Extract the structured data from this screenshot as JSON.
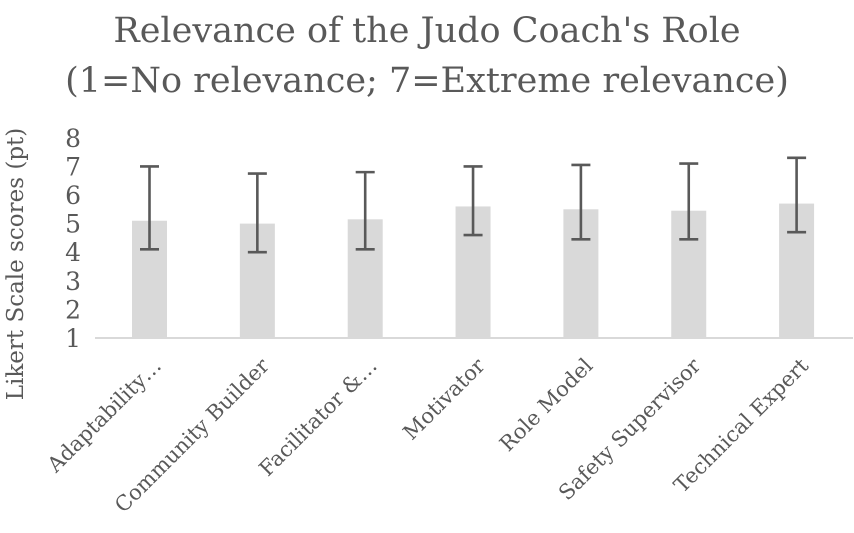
{
  "chart_data": {
    "type": "bar",
    "title": "Relevance of the Judo Coach's Role",
    "subtitle": "(1=No relevance; 7=Extreme relevance)",
    "ylabel": "Likert Scale scores (pt)",
    "xlabel": "",
    "ylim": [
      1,
      8
    ],
    "yticks": [
      1,
      2,
      3,
      4,
      5,
      6,
      7,
      8
    ],
    "grid": false,
    "legend_position": "none",
    "categories": [
      "Adaptability…",
      "Community Builder",
      "Facilitator &…",
      "Motivator",
      "Role Model",
      "Safety Supervisor",
      "Technical Expert"
    ],
    "series": [
      {
        "name": "Likert Scale scores",
        "values": [
          5.1,
          5.0,
          5.15,
          5.6,
          5.5,
          5.45,
          5.7
        ],
        "error_low": [
          4.1,
          4.0,
          4.1,
          4.6,
          4.45,
          4.45,
          4.7
        ],
        "error_high": [
          7.0,
          6.75,
          6.8,
          7.0,
          7.05,
          7.1,
          7.3
        ]
      }
    ],
    "colors": {
      "bar_fill": "#d9d9d9",
      "error_bar": "#595959",
      "axis_line": "#d9d9d9",
      "text": "#595959"
    }
  }
}
